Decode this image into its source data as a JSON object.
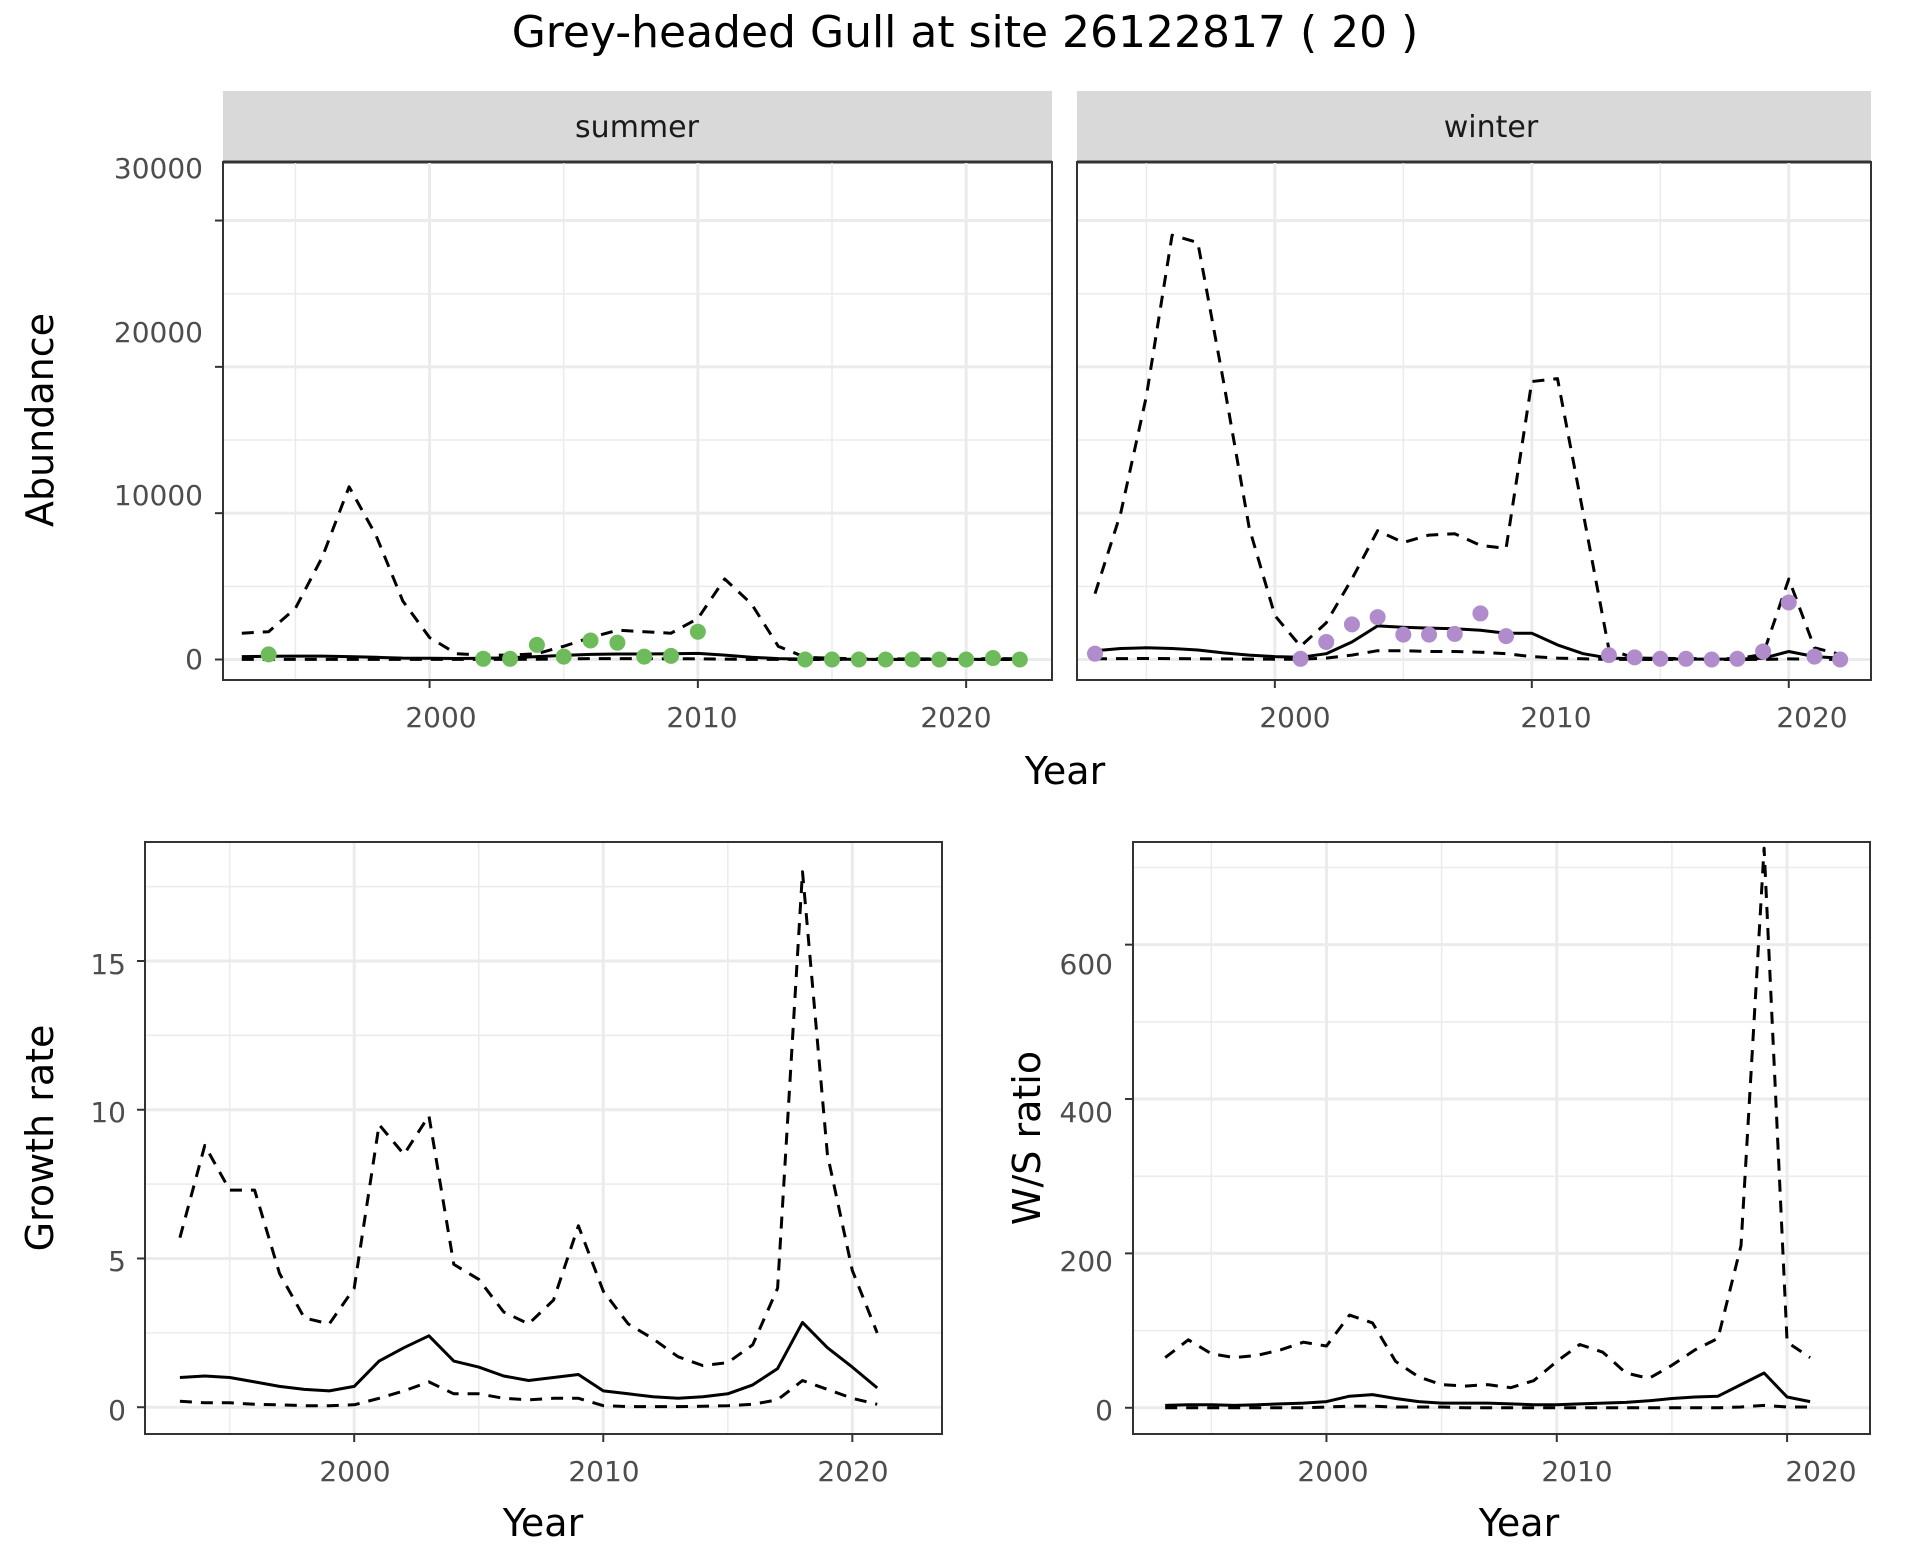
{
  "title": "Grey-headed Gull at site 26122817 ( 20 )",
  "colors": {
    "summer_points": "#6dbb5b",
    "winter_points": "#b18ccc",
    "strip_bg": "#d9d9d9",
    "grid": "#ebebeb",
    "line": "#000000"
  },
  "chart_data": [
    {
      "type": "line",
      "facet": "summer",
      "xlabel": "Year",
      "ylabel": "Abundance",
      "xlim": [
        1992.3,
        2023.2
      ],
      "ylim": [
        -1400,
        34000
      ],
      "xticks": [
        2000,
        2010,
        2020
      ],
      "yticks": [
        0,
        10000,
        20000,
        30000
      ],
      "grid": true,
      "series": [
        {
          "style": "solid",
          "x": [
            1993,
            1994,
            1995,
            1996,
            1997,
            1998,
            1999,
            2000,
            2001,
            2002,
            2003,
            2004,
            2005,
            2006,
            2007,
            2008,
            2009,
            2010,
            2011,
            2012,
            2013,
            2014,
            2015,
            2016,
            2017,
            2018,
            2019,
            2020,
            2021,
            2022
          ],
          "values": [
            200,
            220,
            230,
            230,
            200,
            150,
            100,
            80,
            70,
            80,
            120,
            200,
            280,
            350,
            380,
            380,
            390,
            420,
            300,
            150,
            60,
            30,
            20,
            15,
            10,
            10,
            10,
            10,
            15,
            10
          ]
        },
        {
          "style": "dashed",
          "x": [
            1993,
            1994,
            1995,
            1996,
            1997,
            1998,
            1999,
            2000,
            2001,
            2002,
            2003,
            2004,
            2005,
            2006,
            2007,
            2008,
            2009,
            2010,
            2011,
            2012,
            2013,
            2014,
            2015,
            2016,
            2017,
            2018,
            2019,
            2020,
            2021,
            2022
          ],
          "values": [
            1800,
            1900,
            3500,
            7000,
            11800,
            8500,
            4000,
            1500,
            400,
            300,
            300,
            400,
            900,
            1500,
            2000,
            1900,
            1800,
            2800,
            5500,
            3800,
            900,
            150,
            80,
            60,
            50,
            40,
            40,
            40,
            60,
            50
          ]
        },
        {
          "style": "dashed",
          "x": [
            1993,
            1994,
            1995,
            1996,
            1997,
            1998,
            1999,
            2000,
            2001,
            2002,
            2003,
            2004,
            2005,
            2006,
            2007,
            2008,
            2009,
            2010,
            2011,
            2012,
            2013,
            2014,
            2015,
            2016,
            2017,
            2018,
            2019,
            2020,
            2021,
            2022
          ],
          "values": [
            10,
            10,
            10,
            10,
            10,
            5,
            5,
            5,
            5,
            5,
            10,
            20,
            40,
            60,
            60,
            60,
            50,
            50,
            30,
            10,
            5,
            3,
            2,
            2,
            1,
            1,
            1,
            1,
            2,
            1
          ]
        },
        {
          "style": "points",
          "x": [
            1994,
            2002,
            2003,
            2004,
            2005,
            2006,
            2007,
            2008,
            2009,
            2010,
            2014,
            2015,
            2016,
            2017,
            2018,
            2019,
            2020,
            2021,
            2022
          ],
          "values": [
            350,
            50,
            50,
            1000,
            200,
            1300,
            1150,
            200,
            250,
            1900,
            0,
            0,
            0,
            0,
            0,
            0,
            0,
            100,
            0
          ]
        }
      ]
    },
    {
      "type": "line",
      "facet": "winter",
      "xlabel": "Year",
      "ylabel": "Abundance",
      "xlim": [
        1992.3,
        2023.2
      ],
      "ylim": [
        -1400,
        34000
      ],
      "xticks": [
        2000,
        2010,
        2020
      ],
      "yticks": [
        0,
        10000,
        20000,
        30000
      ],
      "grid": true,
      "series": [
        {
          "style": "solid",
          "x": [
            1993,
            1994,
            1995,
            1996,
            1997,
            1998,
            1999,
            2000,
            2001,
            2002,
            2003,
            2004,
            2005,
            2006,
            2007,
            2008,
            2009,
            2010,
            2011,
            2012,
            2013,
            2014,
            2015,
            2016,
            2017,
            2018,
            2019,
            2020,
            2021,
            2022
          ],
          "values": [
            600,
            750,
            800,
            750,
            650,
            450,
            300,
            200,
            150,
            400,
            1200,
            2300,
            2200,
            2150,
            2100,
            2000,
            1800,
            1800,
            1000,
            400,
            100,
            60,
            40,
            30,
            30,
            30,
            80,
            550,
            200,
            100
          ]
        },
        {
          "style": "dashed",
          "x": [
            1993,
            1994,
            1995,
            1996,
            1997,
            1998,
            1999,
            2000,
            2001,
            2002,
            2003,
            2004,
            2005,
            2006,
            2007,
            2008,
            2009,
            2010,
            2011,
            2012,
            2013,
            2014,
            2015,
            2016,
            2017,
            2018,
            2019,
            2020,
            2021,
            2022
          ],
          "values": [
            4500,
            10000,
            18000,
            29000,
            28500,
            19000,
            9000,
            3000,
            900,
            2500,
            5500,
            8800,
            8000,
            8500,
            8600,
            7800,
            7600,
            19000,
            19200,
            10000,
            700,
            100,
            80,
            60,
            50,
            60,
            350,
            5500,
            800,
            350
          ]
        },
        {
          "style": "dashed",
          "x": [
            1993,
            1994,
            1995,
            1996,
            1997,
            1998,
            1999,
            2000,
            2001,
            2002,
            2003,
            2004,
            2005,
            2006,
            2007,
            2008,
            2009,
            2010,
            2011,
            2012,
            2013,
            2014,
            2015,
            2016,
            2017,
            2018,
            2019,
            2020,
            2021,
            2022
          ],
          "values": [
            50,
            60,
            70,
            60,
            50,
            40,
            30,
            20,
            20,
            100,
            300,
            600,
            600,
            550,
            550,
            500,
            400,
            200,
            100,
            50,
            10,
            5,
            4,
            3,
            3,
            3,
            10,
            40,
            20,
            10
          ]
        },
        {
          "style": "points",
          "x": [
            1993,
            2001,
            2002,
            2003,
            2004,
            2005,
            2006,
            2007,
            2008,
            2009,
            2013,
            2014,
            2015,
            2016,
            2017,
            2018,
            2019,
            2020,
            2021,
            2022
          ],
          "values": [
            400,
            50,
            1200,
            2400,
            2900,
            1700,
            1700,
            1750,
            3150,
            1600,
            300,
            150,
            50,
            50,
            0,
            50,
            550,
            3900,
            200,
            0
          ]
        }
      ]
    },
    {
      "type": "line",
      "xlabel": "Year",
      "ylabel": "Growth rate",
      "xlim": [
        1991.6,
        2023.6
      ],
      "ylim": [
        -0.9,
        19.0
      ],
      "xticks": [
        2000,
        2010,
        2020
      ],
      "yticks": [
        0,
        5,
        10,
        15
      ],
      "grid": true,
      "series": [
        {
          "style": "solid",
          "x": [
            1993,
            1994,
            1995,
            1996,
            1997,
            1998,
            1999,
            2000,
            2001,
            2002,
            2003,
            2004,
            2005,
            2006,
            2007,
            2008,
            2009,
            2010,
            2011,
            2012,
            2013,
            2014,
            2015,
            2016,
            2017,
            2018,
            2019,
            2020,
            2021
          ],
          "values": [
            1.0,
            1.05,
            1.0,
            0.85,
            0.7,
            0.6,
            0.55,
            0.7,
            1.55,
            2.0,
            2.4,
            1.55,
            1.35,
            1.05,
            0.9,
            1.0,
            1.1,
            0.55,
            0.45,
            0.35,
            0.3,
            0.35,
            0.45,
            0.75,
            1.3,
            2.85,
            2.0,
            1.35,
            0.65
          ]
        },
        {
          "style": "dashed",
          "x": [
            1993,
            1994,
            1995,
            1996,
            1997,
            1998,
            1999,
            2000,
            2001,
            2002,
            2003,
            2004,
            2005,
            2006,
            2007,
            2008,
            2009,
            2010,
            2011,
            2012,
            2013,
            2014,
            2015,
            2016,
            2017,
            2018,
            2019,
            2020,
            2021
          ],
          "values": [
            5.7,
            8.8,
            7.3,
            7.3,
            4.5,
            3.0,
            2.8,
            4.0,
            9.5,
            8.5,
            9.8,
            4.8,
            4.3,
            3.2,
            2.8,
            3.6,
            6.1,
            3.9,
            2.8,
            2.3,
            1.7,
            1.4,
            1.5,
            2.1,
            4.0,
            18.0,
            8.5,
            4.6,
            2.5
          ]
        },
        {
          "style": "dashed",
          "x": [
            1993,
            1994,
            1995,
            1996,
            1997,
            1998,
            1999,
            2000,
            2001,
            2002,
            2003,
            2004,
            2005,
            2006,
            2007,
            2008,
            2009,
            2010,
            2011,
            2012,
            2013,
            2014,
            2015,
            2016,
            2017,
            2018,
            2019,
            2020,
            2021
          ],
          "values": [
            0.2,
            0.15,
            0.15,
            0.1,
            0.08,
            0.05,
            0.05,
            0.08,
            0.3,
            0.55,
            0.85,
            0.45,
            0.45,
            0.3,
            0.25,
            0.3,
            0.3,
            0.05,
            0.02,
            0.02,
            0.02,
            0.03,
            0.05,
            0.1,
            0.25,
            0.9,
            0.6,
            0.3,
            0.1
          ]
        }
      ]
    },
    {
      "type": "line",
      "xlabel": "Year",
      "ylabel": "W/S ratio",
      "xlim": [
        1991.6,
        2023.6
      ],
      "ylim": [
        -34,
        733
      ],
      "xticks": [
        2000,
        2010,
        2020
      ],
      "yticks": [
        0,
        200,
        400,
        600
      ],
      "grid": true,
      "series": [
        {
          "style": "solid",
          "x": [
            1993,
            1994,
            1995,
            1996,
            1997,
            1998,
            1999,
            2000,
            2001,
            2002,
            2003,
            2004,
            2005,
            2006,
            2007,
            2008,
            2009,
            2010,
            2011,
            2012,
            2013,
            2014,
            2015,
            2016,
            2017,
            2018,
            2019,
            2020,
            2021
          ],
          "values": [
            3,
            4,
            4,
            3,
            4,
            5,
            6,
            8,
            15,
            17,
            12,
            8,
            6,
            6,
            6,
            5,
            4,
            4,
            5,
            6,
            7,
            9,
            12,
            14,
            15,
            30,
            45,
            14,
            8
          ]
        },
        {
          "style": "dashed",
          "x": [
            1993,
            1994,
            1995,
            1996,
            1997,
            1998,
            1999,
            2000,
            2001,
            2002,
            2003,
            2004,
            2005,
            2006,
            2007,
            2008,
            2009,
            2010,
            2011,
            2012,
            2013,
            2014,
            2015,
            2016,
            2017,
            2018,
            2019,
            2020,
            2021
          ],
          "values": [
            65,
            88,
            70,
            65,
            68,
            75,
            85,
            80,
            120,
            110,
            60,
            40,
            30,
            28,
            30,
            26,
            35,
            60,
            82,
            72,
            45,
            38,
            55,
            75,
            90,
            210,
            725,
            85,
            65
          ]
        },
        {
          "style": "dashed",
          "x": [
            1993,
            1994,
            1995,
            1996,
            1997,
            1998,
            1999,
            2000,
            2001,
            2002,
            2003,
            2004,
            2005,
            2006,
            2007,
            2008,
            2009,
            2010,
            2011,
            2012,
            2013,
            2014,
            2015,
            2016,
            2017,
            2018,
            2019,
            2020,
            2021
          ],
          "values": [
            0,
            0,
            0,
            0,
            0,
            0,
            0,
            1,
            2,
            2,
            1,
            1,
            1,
            0,
            0,
            0,
            0,
            0,
            0,
            0,
            0,
            0,
            0,
            0,
            0,
            1,
            3,
            1,
            1
          ]
        }
      ]
    }
  ],
  "strips": {
    "summer": "summer",
    "winter": "winter"
  },
  "axis_titles": {
    "top_x": "Year",
    "top_y": "Abundance",
    "bl_x": "Year",
    "bl_y": "Growth rate",
    "br_x": "Year",
    "br_y": "W/S ratio"
  },
  "ticks": {
    "top_y": [
      "0",
      "10000",
      "20000",
      "30000"
    ],
    "top_x": [
      "2000",
      "2010",
      "2020"
    ],
    "bl_y": [
      "0",
      "5",
      "10",
      "15"
    ],
    "bl_x": [
      "2000",
      "2010",
      "2020"
    ],
    "br_y": [
      "0",
      "200",
      "400",
      "600"
    ],
    "br_x": [
      "2000",
      "2010",
      "2020"
    ]
  }
}
